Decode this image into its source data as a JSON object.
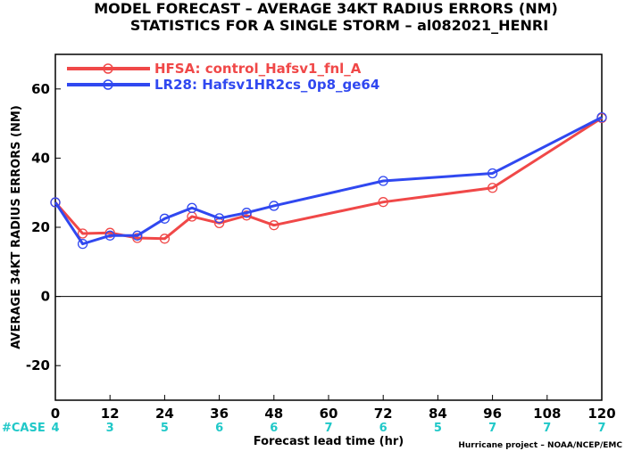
{
  "title_line1": "MODEL FORECAST – AVERAGE 34KT RADIUS ERRORS (NM)",
  "title_line2": "STATISTICS FOR A SINGLE STORM – al082021_HENRI",
  "case_label": "#CASE",
  "credit": "Hurricane project – NOAA/NCEP/EMC",
  "chart_data": {
    "type": "line",
    "title": "MODEL FORECAST – AVERAGE 34KT RADIUS ERRORS (NM)",
    "subtitle": "STATISTICS FOR A SINGLE STORM – al082021_HENRI",
    "xlabel": "Forecast lead time (hr)",
    "ylabel": "AVERAGE 34KT RADIUS ERRORS (NM)",
    "xlim": [
      0,
      120
    ],
    "ylim": [
      -30,
      70
    ],
    "xticks": [
      0,
      12,
      24,
      36,
      48,
      60,
      72,
      84,
      96,
      108,
      120
    ],
    "yticks": [
      -20,
      0,
      20,
      40,
      60
    ],
    "legend_position": "top-left",
    "cases": [
      {
        "x": 0,
        "n": "4"
      },
      {
        "x": 12,
        "n": "3"
      },
      {
        "x": 24,
        "n": "5"
      },
      {
        "x": 36,
        "n": "6"
      },
      {
        "x": 48,
        "n": "6"
      },
      {
        "x": 60,
        "n": "7"
      },
      {
        "x": 72,
        "n": "6"
      },
      {
        "x": 84,
        "n": "5"
      },
      {
        "x": 96,
        "n": "7"
      },
      {
        "x": 108,
        "n": "7"
      },
      {
        "x": 120,
        "n": "7"
      }
    ],
    "series": [
      {
        "name": "HFSA: control_Hafsv1_fnl_A",
        "color": "#f04848",
        "x": [
          0,
          6,
          12,
          18,
          24,
          30,
          36,
          42,
          48,
          72,
          96,
          120
        ],
        "y": [
          27.2,
          18.2,
          18.4,
          16.9,
          16.7,
          23.1,
          21.2,
          23.4,
          20.6,
          27.3,
          31.4,
          51.6
        ]
      },
      {
        "name": "LR28: Hafsv1HR2cs_0p8_ge64",
        "color": "#3048f0",
        "x": [
          0,
          6,
          12,
          18,
          24,
          30,
          36,
          42,
          48,
          72,
          96,
          120
        ],
        "y": [
          27.2,
          15.2,
          17.6,
          17.6,
          22.5,
          25.6,
          22.6,
          24.2,
          26.2,
          33.4,
          35.6,
          51.8
        ]
      }
    ]
  }
}
